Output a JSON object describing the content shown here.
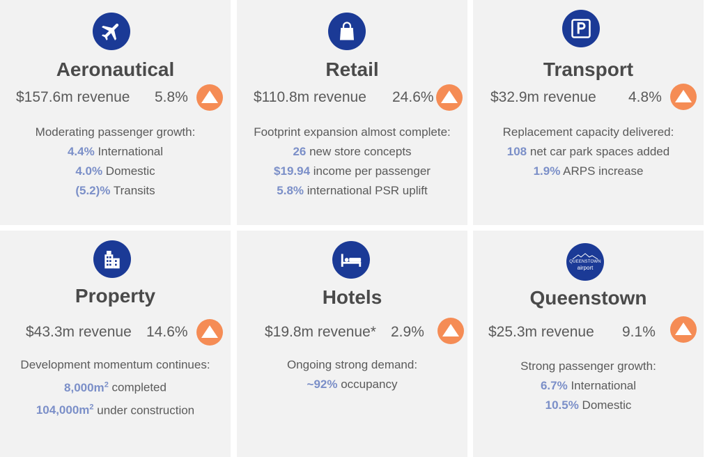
{
  "cards": [
    {
      "title": "Aeronautical",
      "revenue": "$157.6m revenue",
      "change": "5.8%",
      "intro": "Moderating passenger growth:",
      "lines": [
        {
          "value": "4.4%",
          "text": " International"
        },
        {
          "value": "4.0%",
          "text": " Domestic"
        },
        {
          "value": "(5.2)%",
          "text": " Transits"
        }
      ],
      "icon": "airplane-icon"
    },
    {
      "title": "Retail",
      "revenue": "$110.8m revenue",
      "change": "24.6%",
      "intro": "Footprint expansion almost complete:",
      "lines": [
        {
          "value": "26",
          "text": " new store concepts"
        },
        {
          "value": "$19.94",
          "text": " income per passenger"
        },
        {
          "value": "5.8%",
          "text": " international PSR uplift"
        }
      ],
      "icon": "shopping-bag-icon"
    },
    {
      "title": "Transport",
      "revenue": "$32.9m revenue",
      "change": "4.8%",
      "intro": "Replacement capacity delivered:",
      "lines": [
        {
          "value": "108",
          "text": " net car park spaces added"
        },
        {
          "value": "1.9%",
          "text": " ARPS increase"
        }
      ],
      "icon": "parking-icon"
    },
    {
      "title": "Property",
      "revenue": "$43.3m revenue",
      "change": "14.6%",
      "intro": "Development momentum continues:",
      "lines": [
        {
          "value": "8,000m",
          "sup": "2",
          "text": " completed"
        },
        {
          "value": "104,000m",
          "sup": "2",
          "text": " under construction"
        }
      ],
      "icon": "buildings-icon"
    },
    {
      "title": "Hotels",
      "revenue": "$19.8m revenue*",
      "change": "2.9%",
      "intro": "Ongoing strong demand:",
      "lines": [
        {
          "value": "~92%",
          "text": " occupancy"
        }
      ],
      "icon": "bed-icon"
    },
    {
      "title": "Queenstown",
      "revenue": "$25.3m revenue",
      "change": "9.1%",
      "intro": "Strong passenger growth:",
      "lines": [
        {
          "value": "6.7%",
          "text": " International"
        },
        {
          "value": "10.5%",
          "text": " Domestic"
        }
      ],
      "icon": "queenstown-airport-logo-icon",
      "logo_text": [
        "QUEENSTOWN",
        "airport"
      ]
    }
  ],
  "colors": {
    "card_bg": "#f2f2f2",
    "icon_bg": "#1b3a96",
    "arrow_bg": "#f58c55",
    "highlight": "#7b8fc8",
    "title": "#4a4a4a"
  }
}
